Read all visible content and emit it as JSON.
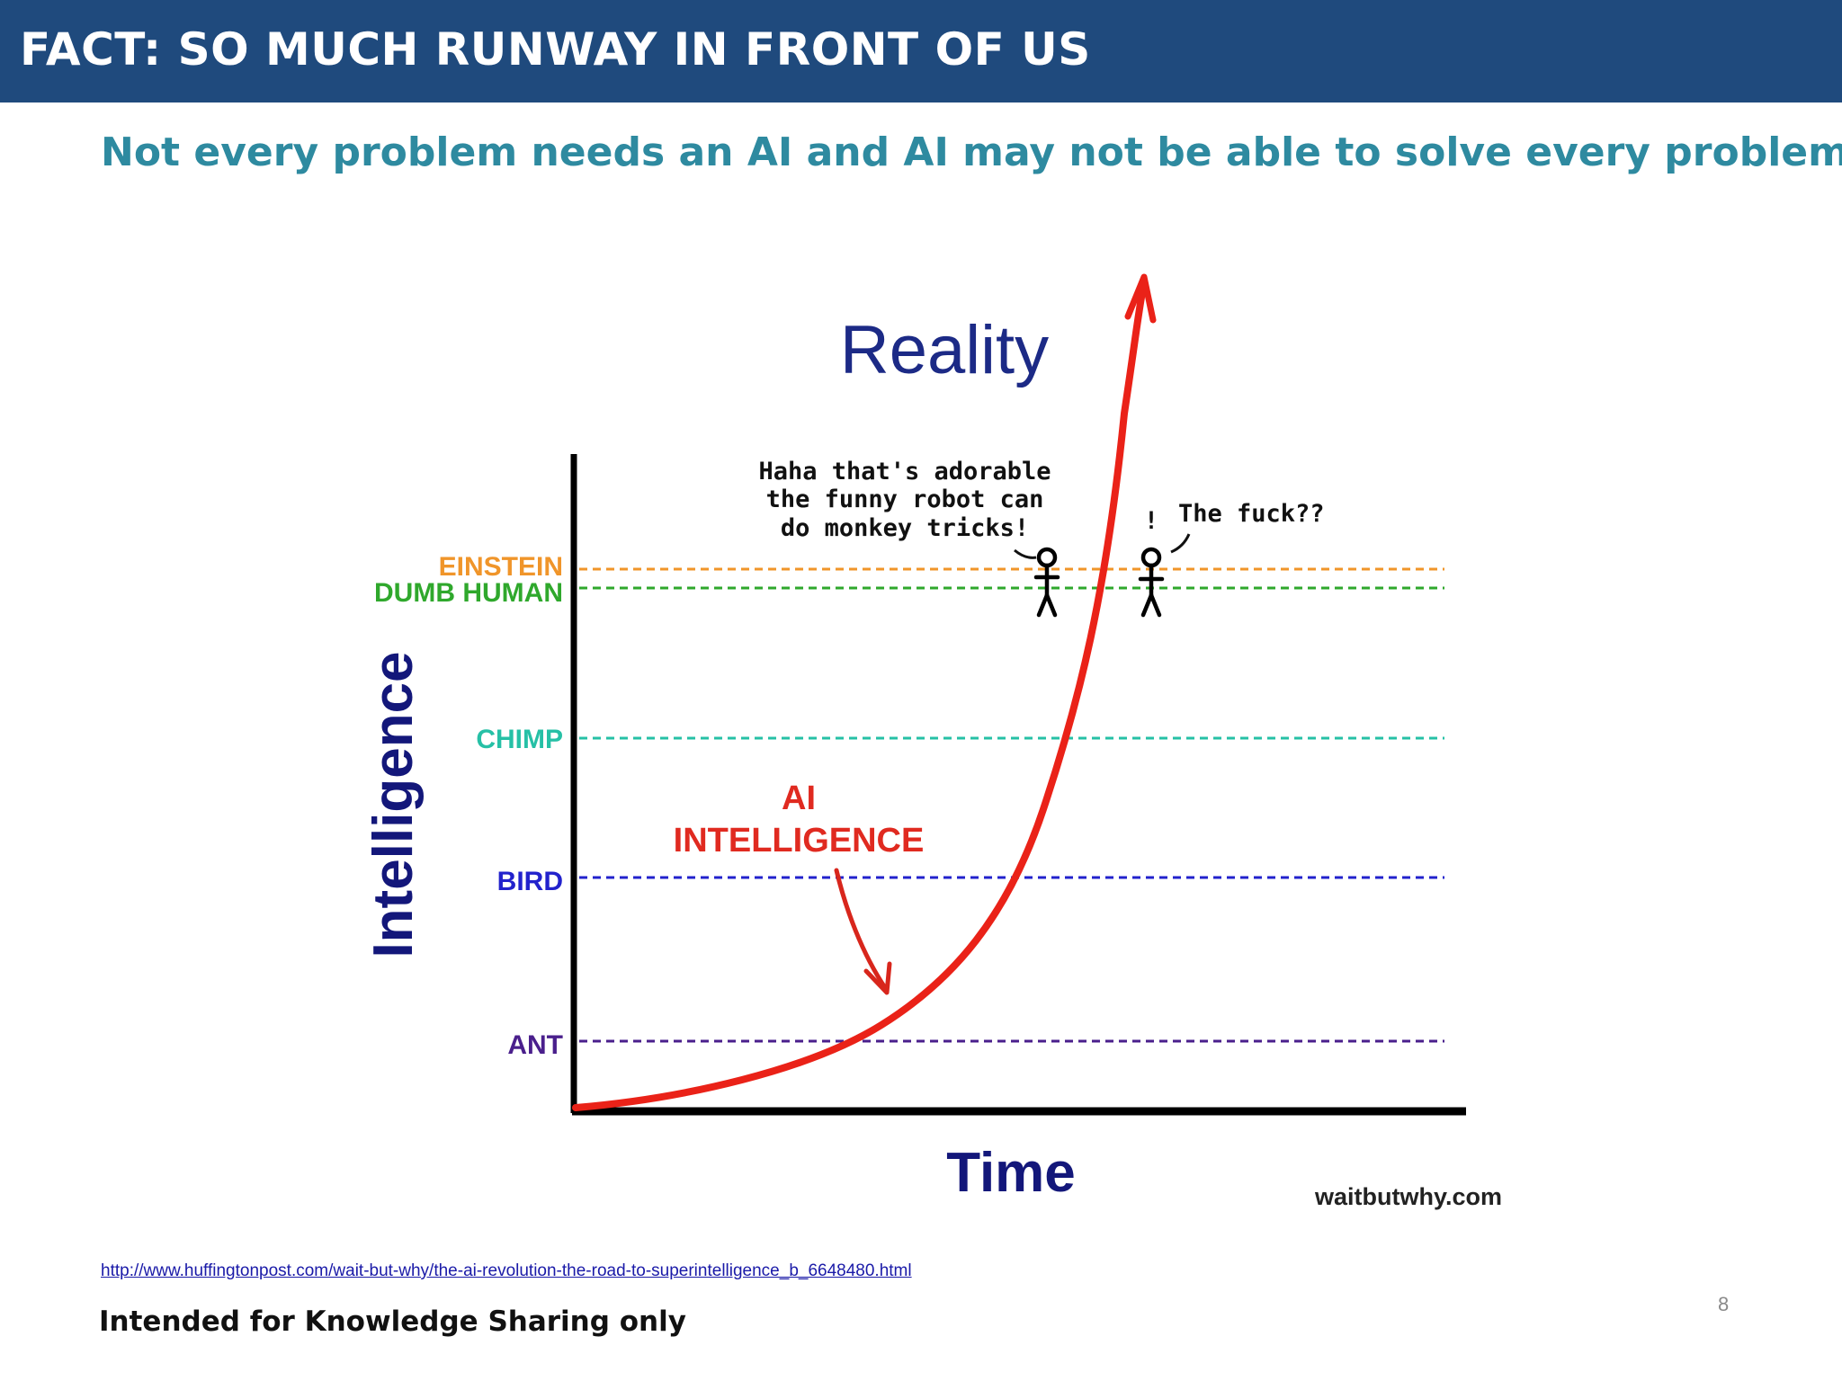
{
  "header": {
    "title": "FACT: SO MUCH RUNWAY IN FRONT OF US"
  },
  "subtitle": "Not every problem needs an AI and AI may not be able to solve every problem…",
  "chart_data": {
    "type": "line",
    "title": "Reality",
    "xlabel": "Time",
    "ylabel": "Intelligence",
    "credit": "waitbutwhy.com",
    "levels": [
      {
        "name": "ANT",
        "color": "#4a1f8c",
        "value": 1
      },
      {
        "name": "BIRD",
        "color": "#2222cc",
        "value": 2
      },
      {
        "name": "CHIMP",
        "color": "#26c0a6",
        "value": 3
      },
      {
        "name": "DUMB HUMAN",
        "color": "#2fa82c",
        "value": 4
      },
      {
        "name": "EINSTEIN",
        "color": "#f0952a",
        "value": 4.1
      }
    ],
    "series": [
      {
        "label": "AI INTELLIGENCE",
        "color": "#ea2218"
      }
    ],
    "annotations": {
      "ai_label_line1": "AI",
      "ai_label_line2": "INTELLIGENCE",
      "speech_1": [
        "Haha that's adorable",
        "the funny robot can",
        "do monkey tricks!"
      ],
      "speech_2": "The fuck??",
      "exclaim": "!"
    },
    "grid": false,
    "legend": "none"
  },
  "footer": {
    "source_url": "http://www.huffingtonpost.com/wait-but-why/the-ai-revolution-the-road-to-superintelligence_b_6648480.html",
    "note": "Intended for Knowledge Sharing only",
    "page_number": "8"
  }
}
